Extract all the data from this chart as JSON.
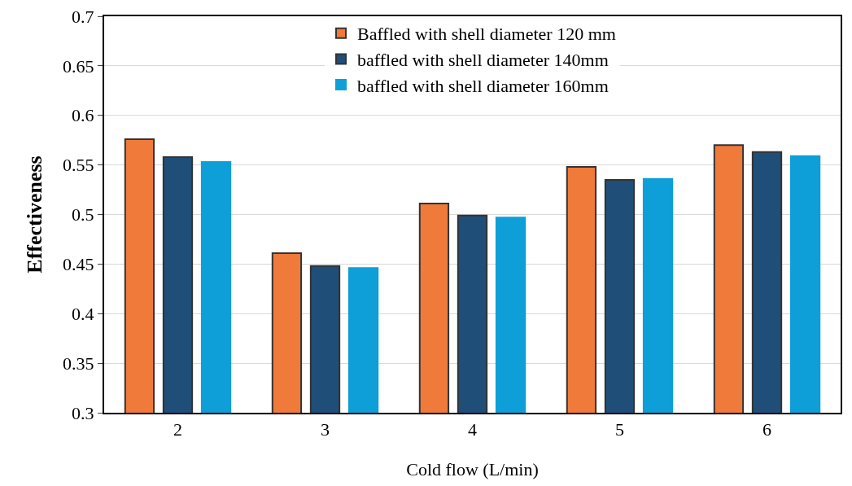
{
  "chart_data": {
    "type": "bar",
    "xlabel": "Cold flow (L/min)",
    "ylabel": "Effectiveness",
    "categories": [
      "2",
      "3",
      "4",
      "5",
      "6"
    ],
    "series": [
      {
        "name": "Baffled with shell diameter 120 mm",
        "color": "#f07a3a",
        "values": [
          0.576,
          0.461,
          0.511,
          0.548,
          0.57
        ]
      },
      {
        "name": "baffled with shell diameter 140mm",
        "color": "#1f4e79",
        "values": [
          0.558,
          0.448,
          0.499,
          0.535,
          0.563
        ]
      },
      {
        "name": "baffled with shell diameter 160mm",
        "color": "#0e9fd8",
        "values": [
          0.553,
          0.446,
          0.497,
          0.536,
          0.559
        ]
      }
    ],
    "ylim": [
      0.3,
      0.7
    ],
    "yticks": [
      0.3,
      0.35,
      0.4,
      0.45,
      0.5,
      0.55,
      0.6,
      0.65,
      0.7
    ],
    "grid": "y",
    "legend": "top"
  }
}
